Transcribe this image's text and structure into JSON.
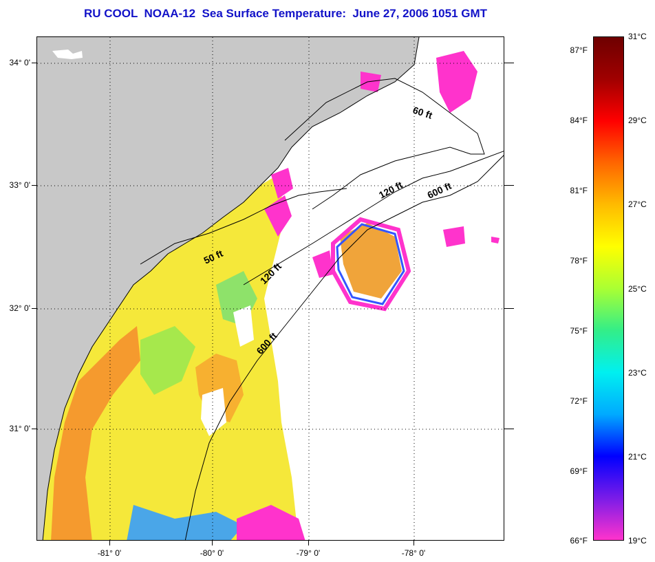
{
  "title": "RU COOL  NOAA-12  Sea Surface Temperature:  June 27, 2006 1051 GMT",
  "map": {
    "latitude_labels": [
      "34° 0'",
      "33° 0'",
      "32° 0'",
      "31° 0'"
    ],
    "longitude_labels": [
      "-81° 0'",
      "-80° 0'",
      "-79° 0'",
      "-78° 0'"
    ],
    "land_color": "#c8c8c8",
    "no_data_color": "#ffffff",
    "isobaths": [
      {
        "label": "60 ft"
      },
      {
        "label": "120 ft"
      },
      {
        "label": "600 ft"
      },
      {
        "label": "50 ft"
      },
      {
        "label": "120 ft"
      },
      {
        "label": "600 ft"
      }
    ]
  },
  "colorbar": {
    "fahrenheit_labels": [
      "87°F",
      "84°F",
      "81°F",
      "78°F",
      "75°F",
      "72°F",
      "69°F",
      "66°F"
    ],
    "celsius_labels": [
      "31°C",
      "29°C",
      "27°C",
      "25°C",
      "23°C",
      "21°C",
      "19°C"
    ],
    "range_celsius": [
      19,
      31
    ],
    "range_fahrenheit": [
      66,
      87.8
    ],
    "scale_colors": [
      "#ff33cc",
      "#7a1ce8",
      "#0000ff",
      "#00aaff",
      "#00f0f0",
      "#33ee88",
      "#aaff33",
      "#ffff00",
      "#ffbb00",
      "#ff6600",
      "#ff0000",
      "#a00000",
      "#6e0000"
    ]
  }
}
